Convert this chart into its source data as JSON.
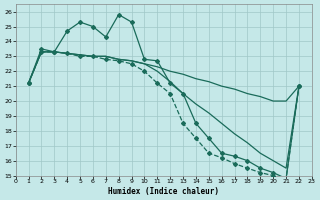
{
  "xlabel": "Humidex (Indice chaleur)",
  "bg_color": "#c5e8e8",
  "grid_color": "#a0c8c8",
  "line_color": "#1a6b5a",
  "xlim": [
    0,
    23
  ],
  "ylim": [
    15,
    26.5
  ],
  "xticks": [
    0,
    1,
    2,
    3,
    4,
    5,
    6,
    7,
    8,
    9,
    10,
    11,
    12,
    13,
    14,
    15,
    16,
    17,
    18,
    19,
    20,
    21,
    22,
    23
  ],
  "yticks": [
    15,
    16,
    17,
    18,
    19,
    20,
    21,
    22,
    23,
    24,
    25,
    26
  ],
  "s1_x": [
    1,
    2,
    3,
    4,
    5,
    6,
    7,
    8,
    9,
    10,
    11,
    12,
    13,
    14,
    15,
    16,
    17,
    18,
    19,
    20,
    21,
    22
  ],
  "s1_y": [
    21.2,
    23.5,
    23.3,
    24.7,
    25.3,
    25.0,
    24.3,
    25.8,
    25.3,
    22.8,
    22.7,
    21.2,
    20.5,
    18.5,
    17.5,
    16.5,
    16.3,
    16.0,
    15.5,
    15.2,
    14.8,
    21.0
  ],
  "s2_x": [
    1,
    2,
    3,
    4,
    5,
    6,
    7,
    8,
    9,
    10,
    11,
    12,
    13,
    14,
    15,
    16,
    17,
    18,
    19,
    20,
    21,
    22
  ],
  "s2_y": [
    21.2,
    23.3,
    23.3,
    23.2,
    23.1,
    23.0,
    23.0,
    22.8,
    22.7,
    22.5,
    22.3,
    22.0,
    21.8,
    21.5,
    21.3,
    21.0,
    20.8,
    20.5,
    20.3,
    20.0,
    20.0,
    21.0
  ],
  "s3_x": [
    1,
    2,
    3,
    4,
    5,
    6,
    7,
    8,
    9,
    10,
    11,
    12,
    13,
    14,
    15,
    16,
    17,
    18,
    19,
    20,
    21,
    22
  ],
  "s3_y": [
    21.2,
    23.3,
    23.3,
    23.2,
    23.1,
    23.0,
    23.0,
    22.8,
    22.7,
    22.5,
    22.0,
    21.3,
    20.5,
    19.8,
    19.2,
    18.5,
    17.8,
    17.2,
    16.5,
    16.0,
    15.5,
    21.0
  ],
  "s4_x": [
    1,
    2,
    3,
    4,
    5,
    6,
    7,
    8,
    9,
    10,
    11,
    12,
    13,
    14,
    15,
    16,
    17,
    18,
    19,
    20,
    21,
    22
  ],
  "s4_y": [
    21.2,
    23.3,
    23.3,
    23.2,
    23.0,
    23.0,
    22.8,
    22.7,
    22.5,
    22.0,
    21.2,
    20.5,
    18.5,
    17.5,
    16.5,
    16.2,
    15.8,
    15.5,
    15.2,
    15.0,
    14.8,
    21.0
  ]
}
